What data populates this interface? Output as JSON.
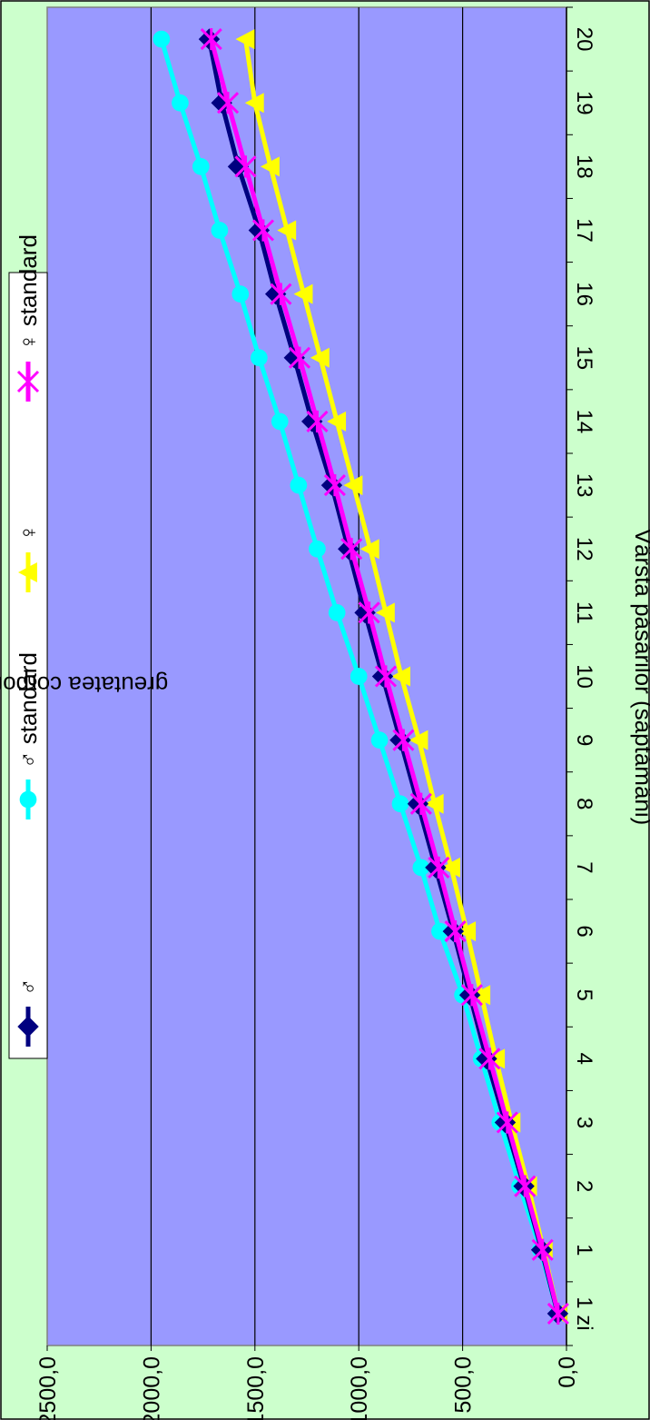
{
  "chart_data": {
    "type": "line",
    "orientation": "rotated-90-clockwise",
    "title": "",
    "xlabel": "Vârsta păsărilor (săptămâni)",
    "ylabel": "greutatea corporală medie (g)",
    "categories": [
      "1 zi",
      "1",
      "2",
      "3",
      "4",
      "5",
      "6",
      "7",
      "8",
      "9",
      "10",
      "11",
      "12",
      "13",
      "14",
      "15",
      "16",
      "17",
      "18",
      "19",
      "20"
    ],
    "ylim": [
      0,
      2500
    ],
    "yticks": [
      "0,0",
      "500,0",
      "1000,0",
      "1500,0",
      "2000,0",
      "2500,0"
    ],
    "grid": true,
    "legend_position": "top",
    "series": [
      {
        "name": "♂",
        "color": "#000080",
        "marker": "diamond",
        "values": [
          42,
          120,
          205,
          295,
          385,
          465,
          545,
          630,
          715,
          800,
          885,
          970,
          1050,
          1130,
          1225,
          1310,
          1400,
          1480,
          1580,
          1660,
          1720
        ]
      },
      {
        "name": "♂ standard",
        "color": "#00FFFF",
        "marker": "circle",
        "values": [
          42,
          125,
          225,
          320,
          410,
          500,
          610,
          700,
          800,
          900,
          1000,
          1105,
          1200,
          1290,
          1380,
          1480,
          1570,
          1670,
          1760,
          1860,
          1950
        ]
      },
      {
        "name": "♀",
        "color": "#FFFF00",
        "marker": "triangle",
        "values": [
          40,
          110,
          185,
          265,
          340,
          410,
          480,
          555,
          635,
          710,
          795,
          870,
          945,
          1025,
          1105,
          1185,
          1265,
          1345,
          1425,
          1500,
          1545
        ]
      },
      {
        "name": "♀ standard",
        "color": "#FF00FF",
        "marker": "star",
        "values": [
          40,
          115,
          200,
          285,
          370,
          455,
          535,
          615,
          700,
          785,
          870,
          950,
          1035,
          1115,
          1200,
          1285,
          1375,
          1460,
          1545,
          1630,
          1710
        ]
      }
    ],
    "colors": {
      "plot_background": "#9999FF",
      "figure_background": "#CCFFCC",
      "gridline": "#000000"
    }
  }
}
